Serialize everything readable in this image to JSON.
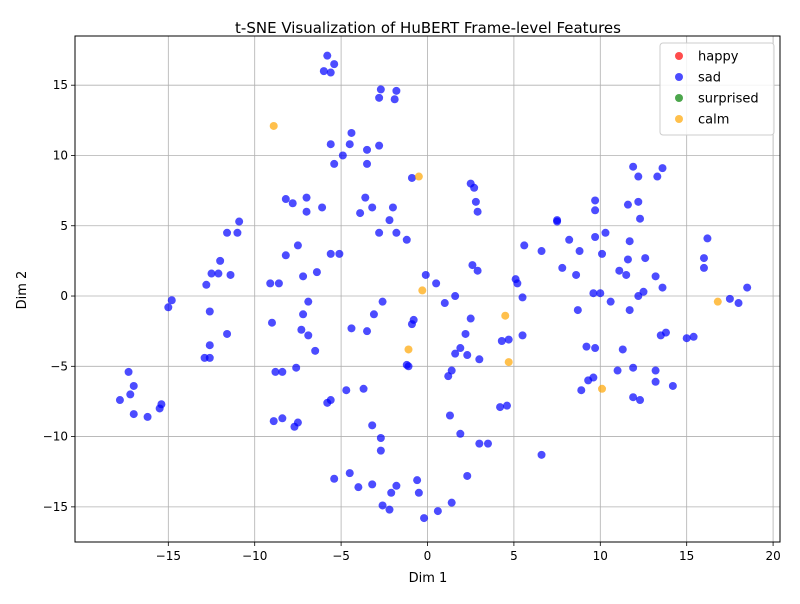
{
  "chart_data": {
    "type": "scatter",
    "title": "t-SNE Visualization of HuBERT Frame-level Features",
    "xlabel": "Dim 1",
    "ylabel": "Dim 2",
    "xlim": [
      -20.4,
      20.4
    ],
    "ylim": [
      -17.5,
      18.5
    ],
    "xticks": [
      -15,
      -10,
      -5,
      0,
      5,
      10,
      15,
      20
    ],
    "yticks": [
      -15,
      -10,
      -5,
      0,
      5,
      10,
      15
    ],
    "grid": true,
    "legend_position": "top-right",
    "series": [
      {
        "name": "happy",
        "color": "#ff0000",
        "points": []
      },
      {
        "name": "sad",
        "color": "#0000ff",
        "points": [
          [
            -5.8,
            17.1
          ],
          [
            -5.4,
            16.5
          ],
          [
            -6.0,
            16.0
          ],
          [
            -5.6,
            15.9
          ],
          [
            -2.7,
            14.7
          ],
          [
            -1.8,
            14.6
          ],
          [
            -2.8,
            14.1
          ],
          [
            -1.9,
            14.0
          ],
          [
            -4.4,
            11.6
          ],
          [
            -5.6,
            10.8
          ],
          [
            -4.5,
            10.8
          ],
          [
            -2.8,
            10.7
          ],
          [
            -3.5,
            10.4
          ],
          [
            -4.9,
            10.0
          ],
          [
            -5.4,
            9.4
          ],
          [
            -3.5,
            9.4
          ],
          [
            -0.9,
            8.4
          ],
          [
            -8.2,
            6.9
          ],
          [
            -7.0,
            7.0
          ],
          [
            -3.6,
            7.0
          ],
          [
            -7.8,
            6.6
          ],
          [
            -6.1,
            6.3
          ],
          [
            -3.2,
            6.3
          ],
          [
            -2.0,
            6.3
          ],
          [
            -7.0,
            6.0
          ],
          [
            -3.9,
            5.9
          ],
          [
            -10.9,
            5.3
          ],
          [
            -2.2,
            5.4
          ],
          [
            -11.6,
            4.5
          ],
          [
            -11.0,
            4.5
          ],
          [
            -2.8,
            4.5
          ],
          [
            -1.8,
            4.5
          ],
          [
            -1.2,
            4.0
          ],
          [
            -7.5,
            3.6
          ],
          [
            -5.6,
            3.0
          ],
          [
            -8.2,
            2.9
          ],
          [
            -5.1,
            3.0
          ],
          [
            -12.0,
            2.5
          ],
          [
            -6.4,
            1.7
          ],
          [
            -12.5,
            1.6
          ],
          [
            -12.1,
            1.6
          ],
          [
            -11.4,
            1.5
          ],
          [
            -7.2,
            1.4
          ],
          [
            -9.1,
            0.9
          ],
          [
            -8.6,
            0.9
          ],
          [
            -12.8,
            0.8
          ],
          [
            -14.8,
            -0.3
          ],
          [
            -15.0,
            -0.8
          ],
          [
            -6.9,
            -0.4
          ],
          [
            -2.6,
            -0.4
          ],
          [
            -12.6,
            -1.1
          ],
          [
            -7.2,
            -1.3
          ],
          [
            -3.1,
            -1.3
          ],
          [
            -9.0,
            -1.9
          ],
          [
            -4.4,
            -2.3
          ],
          [
            -7.3,
            -2.4
          ],
          [
            -3.5,
            -2.5
          ],
          [
            -11.6,
            -2.7
          ],
          [
            -6.9,
            -2.8
          ],
          [
            -12.6,
            -3.5
          ],
          [
            -6.5,
            -3.9
          ],
          [
            -12.9,
            -4.4
          ],
          [
            -12.6,
            -4.4
          ],
          [
            -7.6,
            -5.1
          ],
          [
            -8.8,
            -5.4
          ],
          [
            -8.4,
            -5.4
          ],
          [
            -17.3,
            -5.4
          ],
          [
            -17.0,
            -6.4
          ],
          [
            -17.2,
            -7.0
          ],
          [
            -3.7,
            -6.6
          ],
          [
            -4.7,
            -6.7
          ],
          [
            -17.8,
            -7.4
          ],
          [
            -5.6,
            -7.4
          ],
          [
            -15.4,
            -7.7
          ],
          [
            -5.8,
            -7.6
          ],
          [
            -15.5,
            -8.0
          ],
          [
            -17.0,
            -8.4
          ],
          [
            -16.2,
            -8.6
          ],
          [
            -8.9,
            -8.9
          ],
          [
            -8.4,
            -8.7
          ],
          [
            -7.5,
            -9.0
          ],
          [
            -7.7,
            -9.3
          ],
          [
            -3.2,
            -9.2
          ],
          [
            -2.7,
            -10.1
          ],
          [
            -2.7,
            -11.0
          ],
          [
            -4.5,
            -12.6
          ],
          [
            -5.4,
            -13.0
          ],
          [
            -3.2,
            -13.4
          ],
          [
            -4.0,
            -13.6
          ],
          [
            -1.8,
            -13.5
          ],
          [
            -2.1,
            -14.0
          ],
          [
            -2.6,
            -14.9
          ],
          [
            -2.2,
            -15.2
          ],
          [
            -0.6,
            -13.1
          ],
          [
            -0.5,
            -14.0
          ],
          [
            0.6,
            -15.3
          ],
          [
            1.4,
            -14.7
          ],
          [
            -0.2,
            -15.8
          ],
          [
            2.3,
            -12.8
          ],
          [
            1.9,
            -9.8
          ],
          [
            3.0,
            -10.5
          ],
          [
            3.5,
            -10.5
          ],
          [
            1.3,
            -8.5
          ],
          [
            4.2,
            -7.9
          ],
          [
            4.6,
            -7.8
          ],
          [
            6.6,
            -11.3
          ],
          [
            1.2,
            -5.7
          ],
          [
            1.4,
            -5.3
          ],
          [
            1.6,
            -4.1
          ],
          [
            1.9,
            -3.7
          ],
          [
            2.3,
            -4.2
          ],
          [
            3.0,
            -4.5
          ],
          [
            4.3,
            -3.2
          ],
          [
            4.7,
            -3.1
          ],
          [
            5.5,
            -2.8
          ],
          [
            2.2,
            -2.7
          ],
          [
            2.5,
            -1.6
          ],
          [
            -0.9,
            -2.0
          ],
          [
            -0.8,
            -1.7
          ],
          [
            -1.2,
            -4.9
          ],
          [
            -1.1,
            -5.0
          ],
          [
            1.0,
            -0.5
          ],
          [
            1.6,
            0.0
          ],
          [
            -0.1,
            1.5
          ],
          [
            0.5,
            0.9
          ],
          [
            2.6,
            2.2
          ],
          [
            2.9,
            1.8
          ],
          [
            5.1,
            1.2
          ],
          [
            5.2,
            0.9
          ],
          [
            5.5,
            -0.1
          ],
          [
            5.6,
            3.6
          ],
          [
            6.6,
            3.2
          ],
          [
            2.5,
            8.0
          ],
          [
            2.7,
            7.7
          ],
          [
            2.8,
            6.7
          ],
          [
            2.9,
            6.0
          ],
          [
            7.5,
            5.4
          ],
          [
            7.5,
            5.3
          ],
          [
            7.8,
            2.0
          ],
          [
            8.2,
            4.0
          ],
          [
            8.6,
            1.5
          ],
          [
            8.8,
            3.2
          ],
          [
            9.6,
            0.2
          ],
          [
            10.0,
            0.2
          ],
          [
            9.7,
            6.8
          ],
          [
            9.7,
            6.1
          ],
          [
            9.7,
            4.2
          ],
          [
            10.1,
            3.0
          ],
          [
            10.3,
            4.5
          ],
          [
            11.9,
            9.2
          ],
          [
            12.2,
            8.5
          ],
          [
            11.6,
            6.5
          ],
          [
            12.2,
            6.7
          ],
          [
            12.3,
            5.5
          ],
          [
            11.7,
            3.9
          ],
          [
            11.1,
            1.8
          ],
          [
            11.5,
            1.5
          ],
          [
            11.6,
            2.6
          ],
          [
            12.6,
            2.7
          ],
          [
            12.2,
            0.0
          ],
          [
            12.5,
            0.3
          ],
          [
            10.6,
            -0.4
          ],
          [
            8.7,
            -1.0
          ],
          [
            11.7,
            -1.0
          ],
          [
            13.3,
            8.5
          ],
          [
            13.6,
            9.1
          ],
          [
            13.2,
            1.4
          ],
          [
            13.6,
            0.6
          ],
          [
            13.5,
            -2.8
          ],
          [
            13.8,
            -2.6
          ],
          [
            9.7,
            -3.7
          ],
          [
            9.2,
            -3.6
          ],
          [
            11.3,
            -3.8
          ],
          [
            11.0,
            -5.3
          ],
          [
            9.6,
            -5.8
          ],
          [
            9.3,
            -6.0
          ],
          [
            8.9,
            -6.7
          ],
          [
            11.9,
            -5.1
          ],
          [
            13.2,
            -5.3
          ],
          [
            13.2,
            -6.1
          ],
          [
            14.2,
            -6.4
          ],
          [
            11.9,
            -7.2
          ],
          [
            12.3,
            -7.4
          ],
          [
            15.0,
            -3.0
          ],
          [
            15.4,
            -2.9
          ],
          [
            16.2,
            4.1
          ],
          [
            16.0,
            2.7
          ],
          [
            16.0,
            2.0
          ],
          [
            17.5,
            -0.2
          ],
          [
            18.0,
            -0.5
          ],
          [
            18.5,
            0.6
          ]
        ]
      },
      {
        "name": "surprised",
        "color": "#008000",
        "points": []
      },
      {
        "name": "calm",
        "color": "#ffa500",
        "points": [
          [
            -8.9,
            12.1
          ],
          [
            -0.5,
            8.5
          ],
          [
            -0.3,
            0.4
          ],
          [
            -1.1,
            -3.8
          ],
          [
            4.5,
            -1.4
          ],
          [
            4.7,
            -4.7
          ],
          [
            10.1,
            -6.6
          ],
          [
            16.8,
            -0.4
          ]
        ]
      }
    ]
  }
}
